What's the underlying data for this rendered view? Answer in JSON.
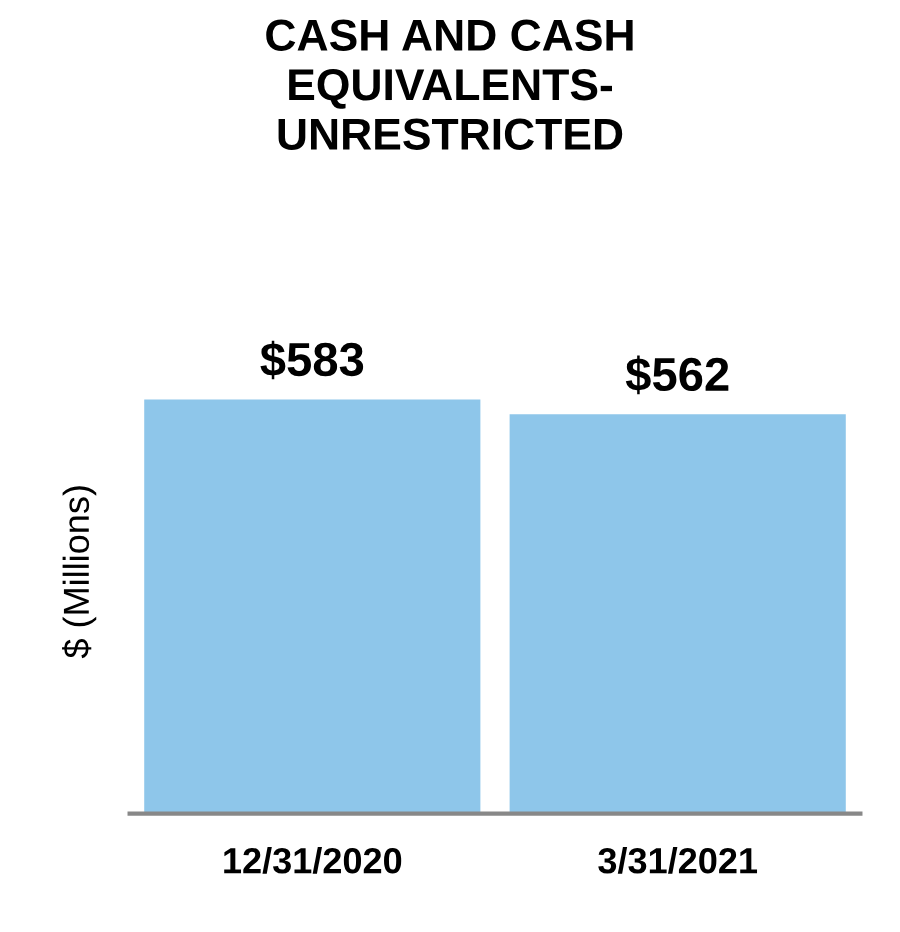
{
  "chart_data": {
    "type": "bar",
    "title": "CASH AND CASH\nEQUIVALENTS-\nUNRESTRICTED",
    "ylabel": "$ (Millions)",
    "categories": [
      "12/31/2020",
      "3/31/2021"
    ],
    "values": [
      583,
      562
    ],
    "value_labels": [
      "$583",
      "$562"
    ],
    "color": "#8ec6ea",
    "grid": false,
    "legend": false
  }
}
